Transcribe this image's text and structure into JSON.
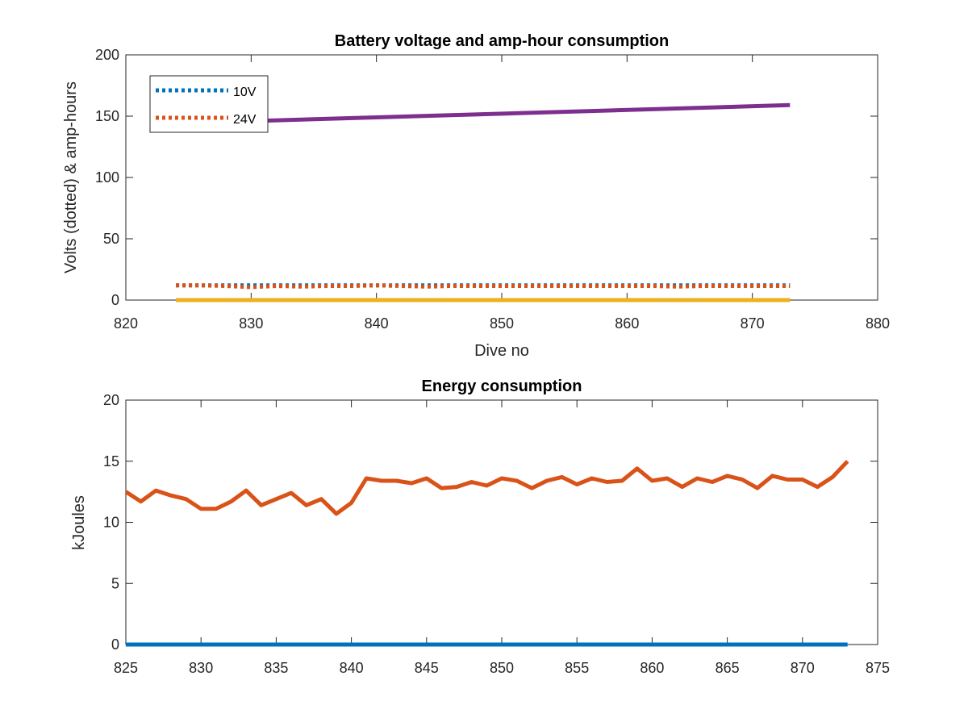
{
  "chart_data": [
    {
      "type": "line",
      "title": "Battery voltage and amp-hour consumption",
      "xlabel": "Dive no",
      "ylabel": "Volts (dotted) & amp-hours",
      "xlim": [
        820,
        880
      ],
      "ylim": [
        0,
        200
      ],
      "xticks": [
        820,
        830,
        840,
        850,
        860,
        870,
        880
      ],
      "yticks": [
        0,
        50,
        100,
        150,
        200
      ],
      "grid": false,
      "legend_position": "top-left",
      "series": [
        {
          "name": "10V",
          "color": "#0072BD",
          "style": "dotted",
          "x": [
            824,
            873
          ],
          "y": [
            12,
            12
          ]
        },
        {
          "name": "24V",
          "color": "#D95319",
          "style": "dotted",
          "x": [
            824,
            826,
            828,
            830,
            832,
            834,
            836,
            838,
            840,
            842,
            844,
            846,
            848,
            850,
            852,
            854,
            856,
            858,
            860,
            862,
            864,
            866,
            868,
            870,
            872,
            873
          ],
          "y": [
            12,
            12,
            11.5,
            10.5,
            11.5,
            11,
            11.5,
            11.5,
            12,
            11.5,
            11,
            11.5,
            11.5,
            11.5,
            11.5,
            11.5,
            11.5,
            11.5,
            11.5,
            11.5,
            11,
            11.5,
            11.5,
            11.5,
            11.5,
            11.5
          ]
        },
        {
          "color": "#7E2F8E",
          "style": "solid",
          "x": [
            830,
            873
          ],
          "y": [
            146,
            159
          ]
        },
        {
          "color": "#EDB120",
          "style": "solid",
          "x": [
            824,
            873
          ],
          "y": [
            0,
            0
          ]
        }
      ]
    },
    {
      "type": "line",
      "title": "Energy consumption",
      "xlabel": "",
      "ylabel": "kJoules",
      "xlim": [
        825,
        875
      ],
      "ylim": [
        0,
        20
      ],
      "xticks": [
        825,
        830,
        835,
        840,
        845,
        850,
        855,
        860,
        865,
        870,
        875
      ],
      "yticks": [
        0,
        5,
        10,
        15,
        20
      ],
      "grid": false,
      "series": [
        {
          "color": "#0072BD",
          "style": "solid",
          "x": [
            825,
            873
          ],
          "y": [
            0,
            0
          ]
        },
        {
          "color": "#D95319",
          "style": "solid",
          "x": [
            825,
            826,
            827,
            828,
            829,
            830,
            831,
            832,
            833,
            834,
            835,
            836,
            837,
            838,
            839,
            840,
            841,
            842,
            843,
            844,
            845,
            846,
            847,
            848,
            849,
            850,
            851,
            852,
            853,
            854,
            855,
            856,
            857,
            858,
            859,
            860,
            861,
            862,
            863,
            864,
            865,
            866,
            867,
            868,
            869,
            870,
            871,
            872,
            873
          ],
          "y": [
            12.5,
            11.7,
            12.6,
            12.2,
            11.9,
            11.1,
            11.1,
            11.7,
            12.6,
            11.4,
            11.9,
            12.4,
            11.4,
            11.9,
            10.7,
            11.6,
            13.6,
            13.4,
            13.4,
            13.2,
            13.6,
            12.8,
            12.9,
            13.3,
            13.0,
            13.6,
            13.4,
            12.8,
            13.4,
            13.7,
            13.1,
            13.6,
            13.3,
            13.4,
            14.4,
            13.4,
            13.6,
            12.9,
            13.6,
            13.3,
            13.8,
            13.5,
            12.8,
            13.8,
            13.5,
            13.5,
            12.9,
            13.7,
            15.0
          ]
        }
      ]
    }
  ]
}
